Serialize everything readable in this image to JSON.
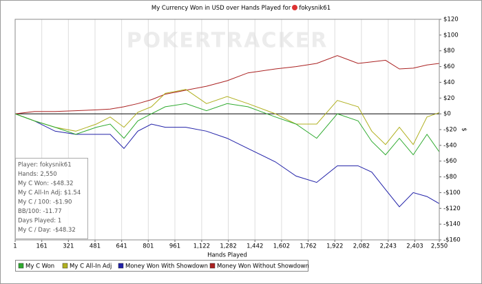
{
  "chart_data": {
    "type": "line",
    "title": "My Currency Won in USD over Hands Played for",
    "title_player": "fokysnik61",
    "watermark": "POKERTRACKER",
    "x_label": "Hands Played",
    "y_label": "$",
    "x": [
      1,
      117,
      241,
      365,
      489,
      572,
      655,
      738,
      820,
      903,
      1027,
      1151,
      1275,
      1400,
      1565,
      1689,
      1813,
      1937,
      2062,
      2144,
      2227,
      2310,
      2393,
      2476,
      2550
    ],
    "series": [
      {
        "name": "My C Won",
        "color": "#2eaa2e",
        "values": [
          0,
          -9,
          -17,
          -26,
          -17,
          -13,
          -31,
          -9,
          0,
          9,
          13,
          4,
          13,
          9,
          -4,
          -13,
          -31,
          0,
          -9,
          -35,
          -52,
          -31,
          -52,
          -26,
          -48.32
        ]
      },
      {
        "name": "My C All-In Adj",
        "color": "#b0b020",
        "values": [
          0,
          -9,
          -17,
          -22,
          -13,
          -4,
          -17,
          2,
          9,
          26,
          31,
          13,
          22,
          13,
          0,
          -13,
          -13,
          17,
          9,
          -22,
          -39,
          -17,
          -39,
          -4,
          1.54
        ]
      },
      {
        "name": "Money Won With Showdown",
        "color": "#2020a8",
        "values": [
          0,
          -9,
          -22,
          -26,
          -26,
          -26,
          -44,
          -22,
          -13,
          -17,
          -17,
          -22,
          -31,
          -44,
          -61,
          -79,
          -87,
          -66,
          -66,
          -74,
          -96,
          -118,
          -100,
          -105,
          -114
        ]
      },
      {
        "name": "Money Won Without Showdown",
        "color": "#aa2020",
        "values": [
          0,
          3,
          3,
          4,
          5,
          6,
          9,
          13,
          18,
          25,
          30,
          35,
          42,
          52,
          57,
          60,
          64,
          74,
          64,
          66,
          68,
          57,
          58,
          62,
          64
        ]
      }
    ],
    "xlim": [
      1,
      2550
    ],
    "xticks": [
      1,
      161,
      321,
      481,
      641,
      801,
      961,
      {
        "value": 1122,
        "label": "1,122"
      },
      {
        "value": 1282,
        "label": "1,282"
      },
      {
        "value": 1442,
        "label": "1,442"
      },
      {
        "value": 1602,
        "label": "1,602"
      },
      {
        "value": 1762,
        "label": "1,762"
      },
      {
        "value": 1922,
        "label": "1,922"
      },
      {
        "value": 2082,
        "label": "2,082"
      },
      {
        "value": 2243,
        "label": "2,243"
      },
      {
        "value": 2403,
        "label": "2,403"
      },
      {
        "value": 2550,
        "label": "2,550"
      }
    ],
    "ylim": [
      -160,
      120
    ],
    "yticks": [
      {
        "value": 120,
        "label": "$120"
      },
      {
        "value": 100,
        "label": "$100"
      },
      {
        "value": 80,
        "label": "$80"
      },
      {
        "value": 60,
        "label": "$60"
      },
      {
        "value": 40,
        "label": "$40"
      },
      {
        "value": 20,
        "label": "$20"
      },
      {
        "value": 0,
        "label": "$0"
      },
      {
        "value": -20,
        "label": "-$20"
      },
      {
        "value": -40,
        "label": "-$40"
      },
      {
        "value": -60,
        "label": "-$60"
      },
      {
        "value": -80,
        "label": "-$80"
      },
      {
        "value": -100,
        "label": "-$100"
      },
      {
        "value": -120,
        "label": "-$120"
      },
      {
        "value": -140,
        "label": "-$140"
      },
      {
        "value": -160,
        "label": "-$160"
      }
    ],
    "grid": "x",
    "stats": [
      "Player: fokysnik61",
      "Hands: 2,550",
      "My C Won: -$48.32",
      "My C All-In Adj: $1.54",
      "My C / 100: -$1.90",
      "BB/100: -11.77",
      "Days Played: 1",
      "My C / Day: -$48.32"
    ]
  }
}
